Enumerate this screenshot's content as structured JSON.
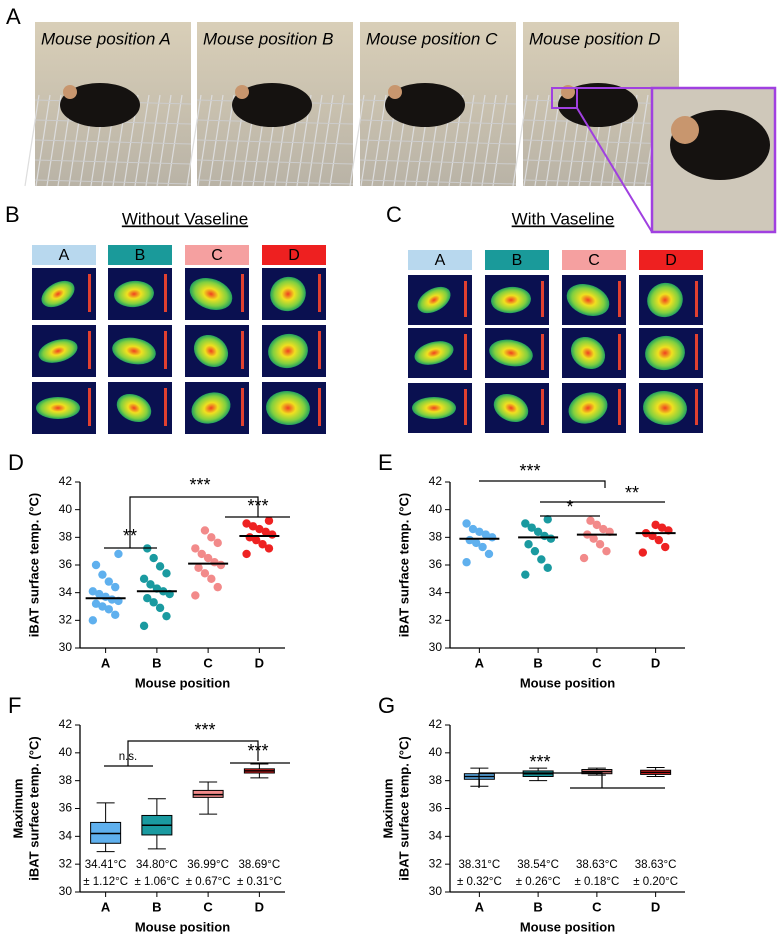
{
  "panels": [
    "A",
    "B",
    "C"
  ],
  "photos": [
    "Mouse position A",
    "Mouse position B",
    "Mouse position C",
    "Mouse position D"
  ],
  "thermal": [
    {
      "title": "Without Vaseline",
      "headers": [
        "A",
        "B",
        "C",
        "D"
      ]
    },
    {
      "title": "With Vaseline",
      "headers": [
        "A",
        "B",
        "C",
        "D"
      ]
    }
  ],
  "chart_data": [
    {
      "type": "strip",
      "panel": "D",
      "y_label": [
        "iBAT surface temp. (°C)"
      ],
      "x_label": "Mouse position",
      "categories": [
        "A",
        "B",
        "C",
        "D"
      ],
      "ylim": [
        30,
        42
      ],
      "yticks": [
        30,
        32,
        34,
        36,
        38,
        40,
        42
      ],
      "groups": [
        {
          "color": "#5fb0ee",
          "values": [
            32.0,
            32.4,
            32.8,
            33.0,
            33.2,
            33.4,
            33.5,
            33.7,
            33.9,
            34.1,
            34.4,
            34.8,
            35.3,
            36.0,
            36.8
          ]
        },
        {
          "color": "#1a9aa0",
          "values": [
            31.6,
            32.3,
            32.9,
            33.3,
            33.6,
            33.9,
            34.1,
            34.3,
            34.6,
            35.0,
            35.4,
            35.9,
            36.5,
            37.2
          ]
        },
        {
          "color": "#f28a8a",
          "values": [
            33.8,
            34.4,
            35.0,
            35.4,
            35.8,
            36.0,
            36.2,
            36.5,
            36.8,
            37.2,
            37.6,
            38.0,
            38.5
          ]
        },
        {
          "color": "#ee2222",
          "values": [
            36.8,
            37.2,
            37.5,
            37.8,
            38.0,
            38.2,
            38.4,
            38.6,
            38.8,
            39.0,
            39.2
          ]
        }
      ],
      "means": [
        33.6,
        34.1,
        36.1,
        38.1
      ],
      "annotations": [
        "**",
        "***",
        "***"
      ]
    },
    {
      "type": "strip",
      "panel": "E",
      "y_label": [
        "iBAT surface temp. (°C)"
      ],
      "x_label": "Mouse position",
      "categories": [
        "A",
        "B",
        "C",
        "D"
      ],
      "ylim": [
        30,
        42
      ],
      "yticks": [
        30,
        32,
        34,
        36,
        38,
        40,
        42
      ],
      "groups": [
        {
          "color": "#5fb0ee",
          "values": [
            36.2,
            36.8,
            37.3,
            37.6,
            37.8,
            38.0,
            38.2,
            38.4,
            38.6,
            39.0
          ]
        },
        {
          "color": "#1a9aa0",
          "values": [
            35.3,
            35.8,
            36.4,
            37.0,
            37.5,
            37.9,
            38.1,
            38.4,
            38.7,
            39.0,
            39.3
          ]
        },
        {
          "color": "#f28a8a",
          "values": [
            36.5,
            37.0,
            37.5,
            37.9,
            38.2,
            38.4,
            38.6,
            38.9,
            39.2
          ]
        },
        {
          "color": "#ee2222",
          "values": [
            36.9,
            37.3,
            37.8,
            38.1,
            38.3,
            38.5,
            38.7,
            38.9
          ]
        }
      ],
      "means": [
        37.9,
        38.0,
        38.2,
        38.3
      ],
      "annotations": [
        "***",
        "**",
        "*"
      ]
    },
    {
      "type": "box",
      "panel": "F",
      "y_label": [
        "Maximum",
        "iBAT surface temp. (°C)"
      ],
      "x_label": "Mouse position",
      "categories": [
        "A",
        "B",
        "C",
        "D"
      ],
      "ylim": [
        30,
        42
      ],
      "yticks": [
        30,
        32,
        34,
        36,
        38,
        40,
        42
      ],
      "boxes": [
        {
          "color": "#5fb0ee",
          "whisker_low": 32.9,
          "q1": 33.5,
          "median": 34.2,
          "q3": 35.0,
          "whisker_high": 36.4
        },
        {
          "color": "#1a9aa0",
          "whisker_low": 33.1,
          "q1": 34.1,
          "median": 34.8,
          "q3": 35.5,
          "whisker_high": 36.7
        },
        {
          "color": "#f28a8a",
          "whisker_low": 35.6,
          "q1": 36.8,
          "median": 37.0,
          "q3": 37.3,
          "whisker_high": 37.9
        },
        {
          "color": "#ee2222",
          "whisker_low": 38.2,
          "q1": 38.55,
          "median": 38.7,
          "q3": 38.85,
          "whisker_high": 39.2
        }
      ],
      "stat_labels": [
        [
          "34.41°C",
          "± 1.12°C"
        ],
        [
          "34.80°C",
          "± 1.06°C"
        ],
        [
          "36.99°C",
          "± 0.67°C"
        ],
        [
          "38.69°C",
          "± 0.31°C"
        ]
      ],
      "annotations": [
        "n.s.",
        "***",
        "***"
      ]
    },
    {
      "type": "box",
      "panel": "G",
      "y_label": [
        "Maximum",
        "iBAT surface temp. (°C)"
      ],
      "x_label": "Mouse position",
      "categories": [
        "A",
        "B",
        "C",
        "D"
      ],
      "ylim": [
        30,
        42
      ],
      "yticks": [
        30,
        32,
        34,
        36,
        38,
        40,
        42
      ],
      "boxes": [
        {
          "color": "#5fb0ee",
          "whisker_low": 37.6,
          "q1": 38.1,
          "median": 38.3,
          "q3": 38.5,
          "whisker_high": 38.9
        },
        {
          "color": "#1a9aa0",
          "whisker_low": 38.0,
          "q1": 38.3,
          "median": 38.5,
          "q3": 38.7,
          "whisker_high": 38.9
        },
        {
          "color": "#f28a8a",
          "whisker_low": 38.4,
          "q1": 38.5,
          "median": 38.65,
          "q3": 38.8,
          "whisker_high": 38.9
        },
        {
          "color": "#ee2222",
          "whisker_low": 38.3,
          "q1": 38.45,
          "median": 38.6,
          "q3": 38.75,
          "whisker_high": 38.95
        }
      ],
      "stat_labels": [
        [
          "38.31°C",
          "± 0.32°C"
        ],
        [
          "38.54°C",
          "± 0.26°C"
        ],
        [
          "38.63°C",
          "± 0.18°C"
        ],
        [
          "38.63°C",
          "± 0.20°C"
        ]
      ],
      "annotations": [
        "***"
      ]
    }
  ]
}
